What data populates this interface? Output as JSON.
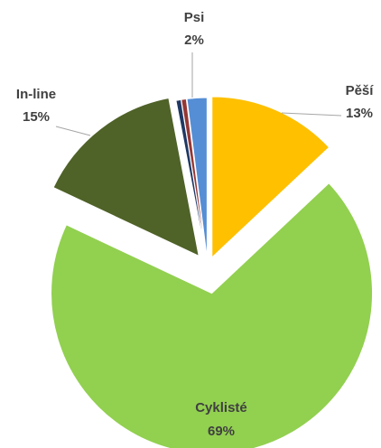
{
  "chart_data": {
    "type": "pie",
    "categories": [
      "Pěší",
      "Cyklisté",
      "In-line",
      null,
      null,
      "Psi"
    ],
    "values": [
      13,
      69,
      15,
      0.5,
      0.5,
      2
    ],
    "value_labels": [
      "13%",
      "69%",
      "15%",
      null,
      null,
      "2%"
    ],
    "colors": [
      "#ffc000",
      "#92d050",
      "#4f6228",
      "#1f3864",
      "#953735",
      "#558ed5"
    ]
  }
}
